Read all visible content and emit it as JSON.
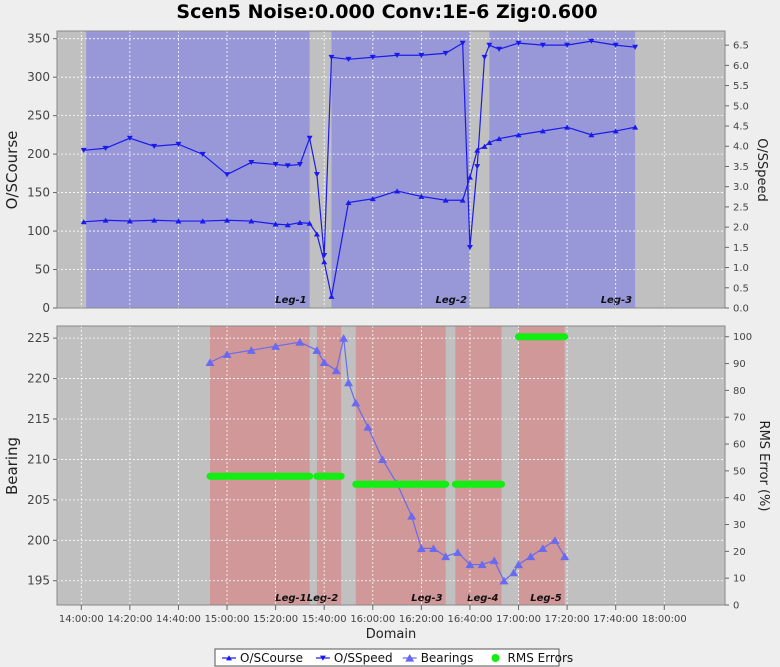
{
  "title": "Scen5 Noise:0.000 Conv:1E-6 Zig:0.600",
  "domain_label": "Domain",
  "x_ticks": [
    "14:00:00",
    "14:20:00",
    "14:40:00",
    "15:00:00",
    "15:20:00",
    "15:40:00",
    "16:00:00",
    "16:20:00",
    "16:40:00",
    "17:00:00",
    "17:20:00",
    "17:40:00",
    "18:00:00"
  ],
  "legend": [
    {
      "name": "O/SCourse",
      "color": "#1a1aee",
      "marker": "triangle-up"
    },
    {
      "name": "O/SSpeed",
      "color": "#1a1aee",
      "marker": "triangle-down"
    },
    {
      "name": "Bearings",
      "color": "#6666ee",
      "marker": "triangle-big"
    },
    {
      "name": "RMS Errors",
      "color": "#11ee11",
      "marker": "circle"
    }
  ],
  "chart_data": [
    {
      "type": "line",
      "panel": "top",
      "x_unit": "minutes since 14:00:00",
      "xlim": [
        -10,
        265
      ],
      "ylabel": "O/SCourse",
      "y2label": "O/SSpeed",
      "ylim": [
        0,
        360
      ],
      "y2lim": [
        0,
        6.85
      ],
      "y_ticks": [
        0,
        50,
        100,
        150,
        200,
        250,
        300,
        350
      ],
      "y2_ticks": [
        "0.0",
        "0.5",
        "1.0",
        "1.5",
        "2.0",
        "2.5",
        "3.0",
        "3.5",
        "4.0",
        "4.5",
        "5.0",
        "5.5",
        "6.0",
        "6.5"
      ],
      "grid": true,
      "legs": [
        {
          "label": "Leg-1",
          "start": 2,
          "end": 94
        },
        {
          "label": "Leg-2",
          "start": 103,
          "end": 160
        },
        {
          "label": "Leg-3",
          "start": 168,
          "end": 228
        }
      ],
      "series": [
        {
          "name": "O/SCourse",
          "axis": "left",
          "marker": "triangle-up",
          "x": [
            1,
            10,
            20,
            30,
            40,
            50,
            60,
            70,
            80,
            85,
            90,
            94,
            97,
            100,
            103,
            110,
            120,
            130,
            140,
            150,
            157,
            160,
            163,
            166,
            168,
            172,
            180,
            190,
            200,
            210,
            220,
            228
          ],
          "y": [
            112,
            114,
            113,
            114,
            113,
            113,
            114,
            113,
            109,
            108,
            111,
            110,
            96,
            60,
            15,
            137,
            142,
            152,
            145,
            140,
            140,
            170,
            205,
            210,
            215,
            220,
            225,
            230,
            235,
            225,
            230,
            235
          ]
        },
        {
          "name": "O/SSpeed",
          "axis": "right",
          "marker": "triangle-down",
          "x": [
            1,
            10,
            20,
            30,
            40,
            50,
            60,
            70,
            80,
            85,
            90,
            94,
            97,
            100,
            103,
            110,
            120,
            130,
            140,
            150,
            157,
            160,
            163,
            166,
            168,
            172,
            180,
            190,
            200,
            210,
            220,
            228
          ],
          "y": [
            3.9,
            3.95,
            4.2,
            4.0,
            4.05,
            3.8,
            3.3,
            3.6,
            3.55,
            3.52,
            3.55,
            4.2,
            3.3,
            1.3,
            6.2,
            6.15,
            6.2,
            6.25,
            6.25,
            6.3,
            6.55,
            1.5,
            3.5,
            6.2,
            6.5,
            6.4,
            6.55,
            6.5,
            6.5,
            6.6,
            6.5,
            6.45
          ]
        }
      ]
    },
    {
      "type": "scatter",
      "panel": "bottom",
      "x_unit": "minutes since 14:00:00",
      "xlim": [
        -10,
        265
      ],
      "ylabel": "Bearing",
      "y2label": "RMS Error (%)",
      "ylim": [
        192,
        226.5
      ],
      "y2lim": [
        0,
        104
      ],
      "y_ticks": [
        195,
        200,
        205,
        210,
        215,
        220,
        225
      ],
      "y2_ticks": [
        0,
        10,
        20,
        30,
        40,
        50,
        60,
        70,
        80,
        90,
        100
      ],
      "grid": true,
      "legs": [
        {
          "label": "Leg-1",
          "start": 53,
          "end": 94
        },
        {
          "label": "Leg-2",
          "start": 97,
          "end": 107
        },
        {
          "label": "Leg-3",
          "start": 113,
          "end": 150
        },
        {
          "label": "Leg-4",
          "start": 154,
          "end": 173
        },
        {
          "label": "Leg-5",
          "start": 180,
          "end": 199
        }
      ],
      "series": [
        {
          "name": "Bearings",
          "axis": "left",
          "marker": "triangle-big",
          "x": [
            53,
            60,
            70,
            80,
            90,
            97,
            100,
            105,
            108,
            110,
            113,
            118,
            124,
            130,
            136,
            140,
            145,
            150,
            155,
            160,
            165,
            170,
            174,
            178,
            180,
            185,
            190,
            195,
            199
          ],
          "y": [
            222,
            223,
            223.5,
            224,
            224.5,
            223.5,
            222,
            221,
            225,
            219.5,
            217,
            214,
            210,
            207,
            203,
            199,
            199,
            198,
            198.5,
            197,
            197,
            197.5,
            195,
            196,
            197,
            198,
            199,
            200,
            198
          ]
        },
        {
          "name": "RMS Errors",
          "axis": "right",
          "marker": "circle",
          "segments": [
            {
              "start": 53,
              "end": 94,
              "value": 48
            },
            {
              "start": 97,
              "end": 107,
              "value": 48
            },
            {
              "start": 113,
              "end": 150,
              "value": 45
            },
            {
              "start": 154,
              "end": 173,
              "value": 45
            },
            {
              "start": 180,
              "end": 199,
              "value": 100
            }
          ]
        }
      ]
    }
  ]
}
